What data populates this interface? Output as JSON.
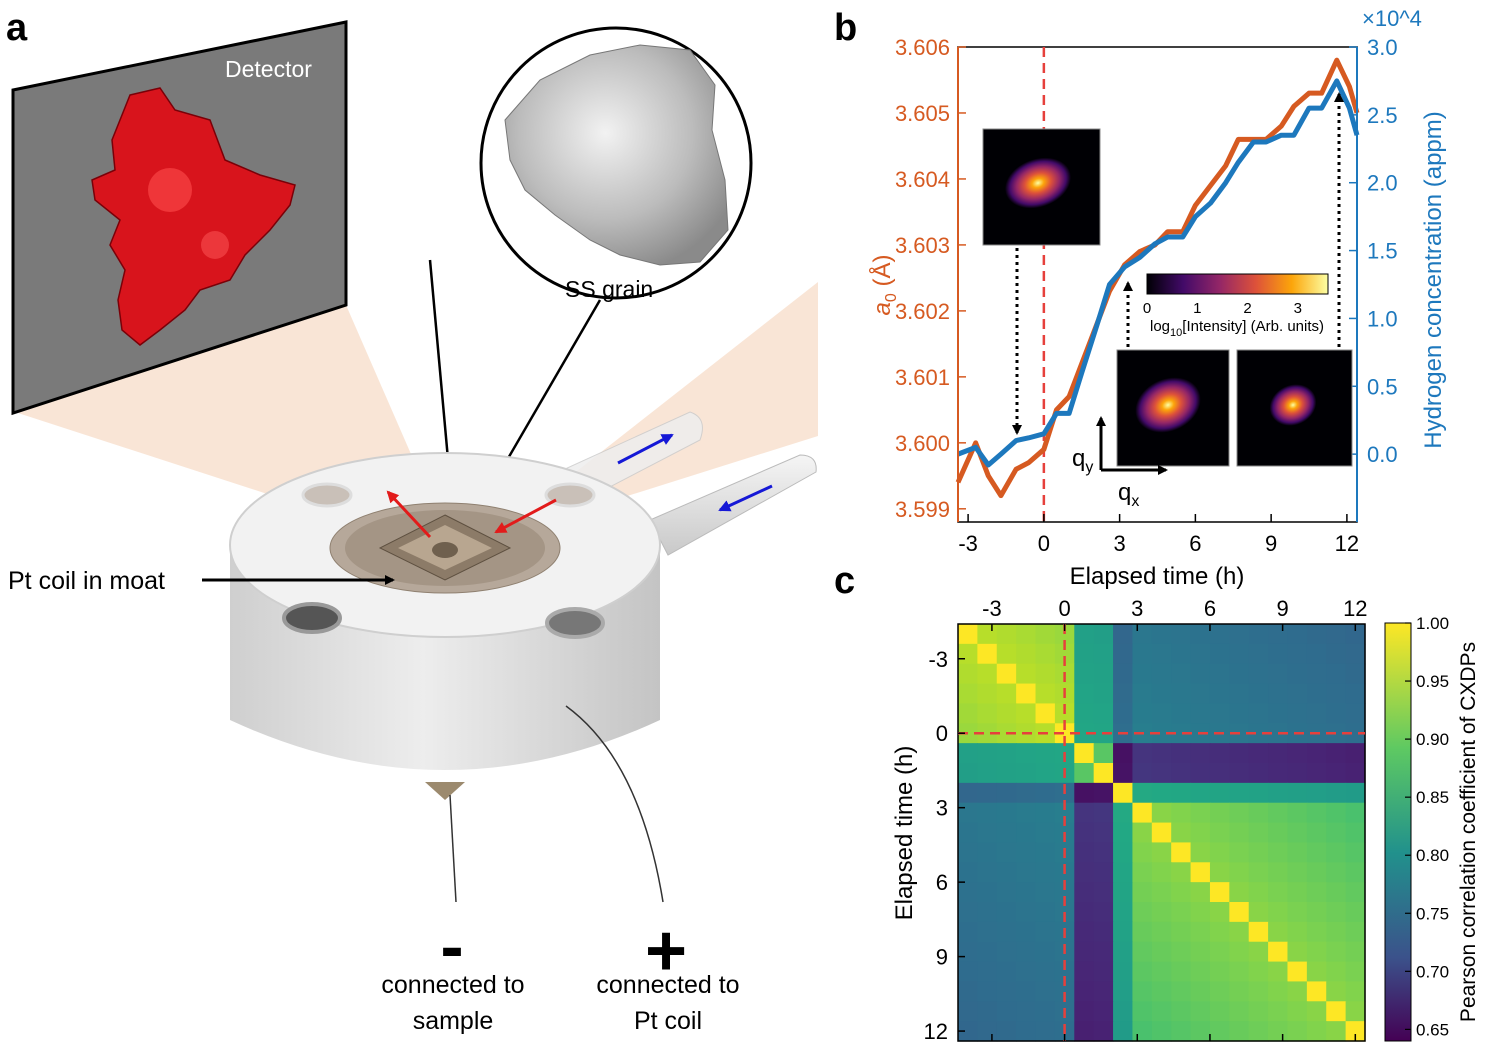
{
  "panel_a": {
    "label": "a",
    "detector_label": "Detector",
    "grain_label": "SS grain",
    "coil_label": "Pt coil in moat",
    "minus_symbol": "-",
    "minus_caption_1": "connected to",
    "minus_caption_2": "sample",
    "plus_symbol": "+",
    "plus_caption_1": "connected to",
    "plus_caption_2": "Pt coil",
    "colors": {
      "detector": "#7a7a7a",
      "crystal": "#d8141c",
      "beam": "#f7dcc8",
      "body": "#e6e6e6",
      "incident_arrow": "#e21b1b",
      "flow_arrow": "#1518d6"
    }
  },
  "panel_b": {
    "label": "b",
    "colorbar_label_prefix": "log",
    "colorbar_label_sub": "10",
    "colorbar_label_suffix": "[Intensity] (Arb. units)",
    "colorbar_ticks": [
      "0",
      "1",
      "2",
      "3"
    ],
    "qy_label": "q",
    "qy_sub": "y",
    "qx_label": "q",
    "qx_sub": "x",
    "left_axis_unit": "(Å)",
    "colors": {
      "lattice": "#d65a21",
      "hydrogen": "#1d78bd",
      "dashed": "#e6403c"
    }
  },
  "panel_c": {
    "label": "c",
    "colorbar_ticks": [
      "1.00",
      "0.95",
      "0.90",
      "0.85",
      "0.80",
      "0.75",
      "0.70",
      "0.65"
    ]
  },
  "chart_data": [
    {
      "type": "line",
      "title": "",
      "xlabel": "Elapsed time (h)",
      "ylabel": "a0 (Å)",
      "y2label": "Hydrogen concentration (appm)",
      "y2_multiplier": "×10^4",
      "x_ticks": [
        "-3",
        "0",
        "3",
        "6",
        "9",
        "12"
      ],
      "y_ticks": [
        "3.599",
        "3.600",
        "3.601",
        "3.602",
        "3.603",
        "3.604",
        "3.605",
        "3.606"
      ],
      "y2_ticks": [
        "0.0",
        "0.5",
        "1.0",
        "1.5",
        "2.0",
        "2.5",
        "3.0"
      ],
      "xlim": [
        -3.4,
        12.4
      ],
      "ylim": [
        3.5988,
        3.606
      ],
      "y2lim": [
        -0.5,
        3.0
      ],
      "vline_x": 0,
      "x": [
        -3.4,
        -2.7,
        -2.2,
        -1.7,
        -1.1,
        -0.6,
        0,
        0.5,
        1.0,
        1.5,
        2.1,
        2.6,
        3.2,
        3.8,
        4.4,
        4.9,
        5.5,
        6.0,
        6.6,
        7.2,
        7.7,
        8.3,
        8.8,
        9.4,
        9.9,
        10.5,
        11.0,
        11.6,
        12.1,
        12.4
      ],
      "series": [
        {
          "name": "a0",
          "axis": "left",
          "values": [
            3.5994,
            3.6,
            3.5995,
            3.5992,
            3.5996,
            3.5997,
            3.5999,
            3.6005,
            3.6007,
            3.6012,
            3.6018,
            3.6023,
            3.6027,
            3.6029,
            3.603,
            3.6032,
            3.6032,
            3.6036,
            3.6039,
            3.6042,
            3.6046,
            3.6046,
            3.6046,
            3.6048,
            3.6051,
            3.6053,
            3.6053,
            3.6058,
            3.6054,
            3.605
          ]
        },
        {
          "name": "Hydrogen concentration",
          "axis": "right",
          "values": [
            0.0,
            0.05,
            -0.08,
            0.0,
            0.1,
            0.12,
            0.15,
            0.3,
            0.3,
            0.6,
            0.95,
            1.25,
            1.38,
            1.45,
            1.55,
            1.6,
            1.6,
            1.75,
            1.85,
            2.0,
            2.15,
            2.3,
            2.3,
            2.35,
            2.35,
            2.55,
            2.55,
            2.75,
            2.55,
            2.35
          ]
        }
      ]
    },
    {
      "type": "heatmap",
      "title": "",
      "xlabel": "",
      "ylabel": "Elapsed time (h)",
      "colorbar_label": "Pearson correlation coefficient of CXDPs",
      "x_ticks": [
        "-3",
        "0",
        "3",
        "6",
        "9",
        "12"
      ],
      "y_ticks": [
        "-3",
        "0",
        "3",
        "6",
        "9",
        "12"
      ],
      "clim": [
        0.64,
        1.0
      ],
      "size": 21,
      "time_start": -4,
      "time_step": 0.8,
      "groups": [
        [
          0,
          1,
          2,
          3,
          4,
          5
        ],
        [
          6,
          7
        ],
        [
          8
        ],
        [
          9,
          10,
          11,
          12,
          13,
          14,
          15,
          16,
          17,
          18,
          19,
          20
        ]
      ],
      "within_group": [
        0.965,
        0.91,
        1.0,
        0.94
      ],
      "between_group": {
        "0-1": 0.855,
        "0-2": 0.775,
        "0-3": 0.8,
        "1-2": 0.66,
        "1-3": 0.7,
        "2-3": 0.86
      }
    }
  ]
}
